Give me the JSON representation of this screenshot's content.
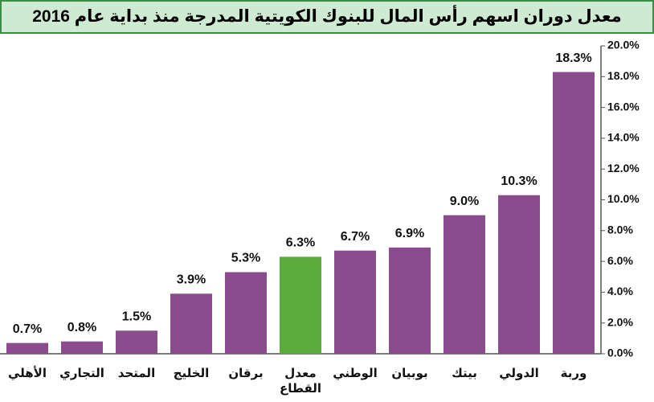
{
  "chart_data": {
    "type": "bar",
    "title": "معدل دوران اسهم رأس المال للبنوك الكويتية المدرجة منذ بداية عام 2016",
    "categories": [
      "الأهلي",
      "التجاري",
      "المتحد",
      "الخليج",
      "برقان",
      "معدل القطاع",
      "الوطني",
      "بوبيان",
      "بيتك",
      "الدولي",
      "وربة"
    ],
    "values": [
      0.7,
      0.8,
      1.5,
      3.9,
      5.3,
      6.3,
      6.7,
      6.9,
      9.0,
      10.3,
      18.3
    ],
    "value_labels": [
      "0.7%",
      "0.8%",
      "1.5%",
      "3.9%",
      "5.3%",
      "6.3%",
      "6.7%",
      "6.9%",
      "9.0%",
      "10.3%",
      "18.3%"
    ],
    "colors": [
      "#8b4c8e",
      "#8b4c8e",
      "#8b4c8e",
      "#8b4c8e",
      "#8b4c8e",
      "#5aac3c",
      "#8b4c8e",
      "#8b4c8e",
      "#8b4c8e",
      "#8b4c8e",
      "#8b4c8e"
    ],
    "ylim": [
      0,
      20
    ],
    "yticks": [
      {
        "value": 0,
        "label": "0.0%"
      },
      {
        "value": 2,
        "label": "2.0%"
      },
      {
        "value": 4,
        "label": "4.0%"
      },
      {
        "value": 6,
        "label": "6.0%"
      },
      {
        "value": 8,
        "label": "8.0%"
      },
      {
        "value": 10,
        "label": "10.0%"
      },
      {
        "value": 12,
        "label": "12.0%"
      },
      {
        "value": 14,
        "label": "14.0%"
      },
      {
        "value": 16,
        "label": "16.0%"
      },
      {
        "value": 18,
        "label": "18.0%"
      },
      {
        "value": 20,
        "label": "20.0%"
      }
    ],
    "y_axis_side": "right"
  }
}
